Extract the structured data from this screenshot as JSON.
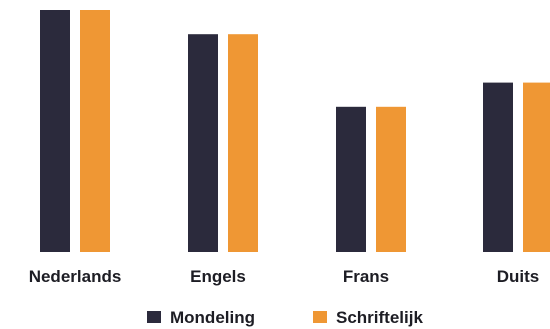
{
  "chart_data": {
    "type": "bar",
    "categories": [
      "Nederlands",
      "Engels",
      "Frans",
      "Duits"
    ],
    "series": [
      {
        "name": "Mondeling",
        "values": [
          100,
          90,
          60,
          70
        ]
      },
      {
        "name": "Schriftelijk",
        "values": [
          100,
          90,
          60,
          70
        ]
      }
    ],
    "ylim": [
      0,
      100
    ],
    "grid": false,
    "legend_position": "bottom"
  },
  "colors": {
    "Mondeling": "#2b2a3c",
    "Schriftelijk": "#ef9734"
  }
}
